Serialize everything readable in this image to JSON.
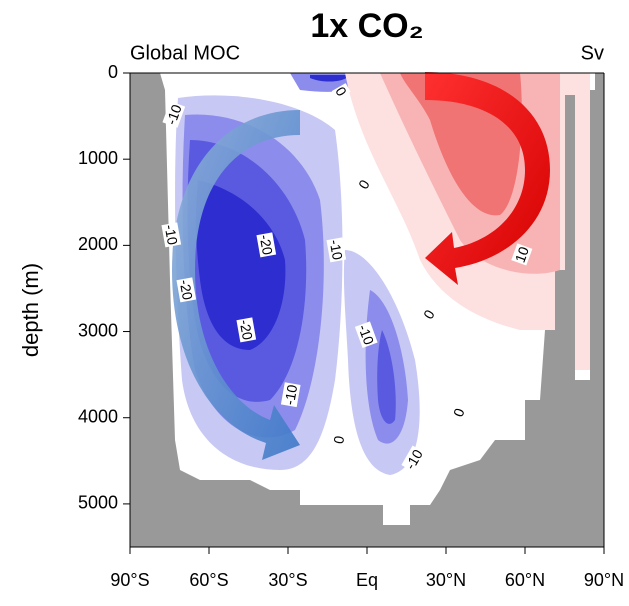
{
  "chart_data": {
    "type": "contour",
    "title": "1x CO₂",
    "subtitle_left": "Global MOC",
    "subtitle_right": "Sv",
    "y_label": "depth (m)",
    "xlim": [
      -90,
      90
    ],
    "xticks": [
      {
        "value": -90,
        "label": "90°S"
      },
      {
        "value": -60,
        "label": "60°S"
      },
      {
        "value": -30,
        "label": "30°S"
      },
      {
        "value": 0,
        "label": "Eq"
      },
      {
        "value": 30,
        "label": "30°N"
      },
      {
        "value": 60,
        "label": "60°N"
      },
      {
        "value": 90,
        "label": "90°N"
      }
    ],
    "ylim": [
      5500,
      0
    ],
    "yticks": [
      0,
      1000,
      2000,
      3000,
      4000,
      5000
    ],
    "contour_labels": [
      -10,
      -10,
      -20,
      -20,
      -20,
      -10,
      -10,
      0,
      0,
      0,
      -10,
      0,
      0,
      -10,
      10
    ]
  }
}
